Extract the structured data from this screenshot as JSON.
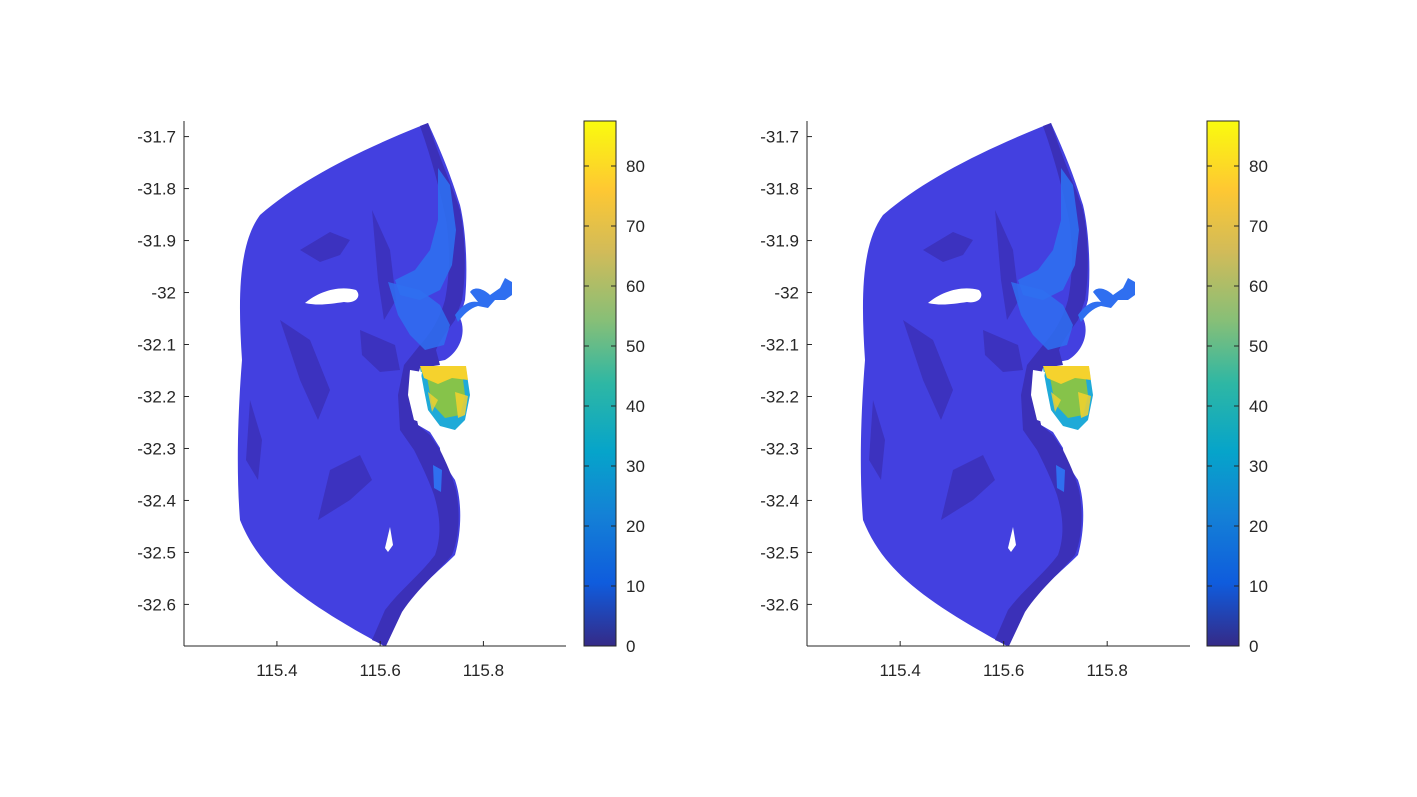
{
  "chart_data": [
    {
      "type": "heatmap",
      "title": "",
      "xlabel": "",
      "ylabel": "",
      "xlim": [
        115.22,
        115.96
      ],
      "ylim": [
        -32.68,
        -31.67
      ],
      "x_ticks": [
        "115.4",
        "115.6",
        "115.8"
      ],
      "y_ticks": [
        "-31.7",
        "-31.8",
        "-31.9",
        "-32",
        "-32.1",
        "-32.2",
        "-32.3",
        "-32.4",
        "-32.5",
        "-32.6"
      ],
      "colorbar": {
        "min": 0,
        "max": 87.5,
        "ticks": [
          "0",
          "10",
          "20",
          "30",
          "40",
          "50",
          "60",
          "70",
          "80"
        ],
        "colormap": "parula"
      },
      "grid": false
    },
    {
      "type": "heatmap",
      "title": "",
      "xlabel": "",
      "ylabel": "",
      "xlim": [
        115.22,
        115.96
      ],
      "ylim": [
        -32.68,
        -31.67
      ],
      "x_ticks": [
        "115.4",
        "115.6",
        "115.8"
      ],
      "y_ticks": [
        "-31.7",
        "-31.8",
        "-31.9",
        "-32",
        "-32.1",
        "-32.2",
        "-32.3",
        "-32.4",
        "-32.5",
        "-32.6"
      ],
      "colorbar": {
        "min": 0,
        "max": 87.5,
        "ticks": [
          "0",
          "10",
          "20",
          "30",
          "40",
          "50",
          "60",
          "70",
          "80"
        ],
        "colormap": "parula"
      },
      "grid": false
    }
  ],
  "colors": {
    "base_field": "#4340e0",
    "dark_field": "#3b30b8",
    "light_field": "#2f6ff0",
    "mid_field": "#1faad8",
    "high_field": "#86c34a",
    "peak_field": "#f5d22d",
    "axis": "#262626"
  }
}
